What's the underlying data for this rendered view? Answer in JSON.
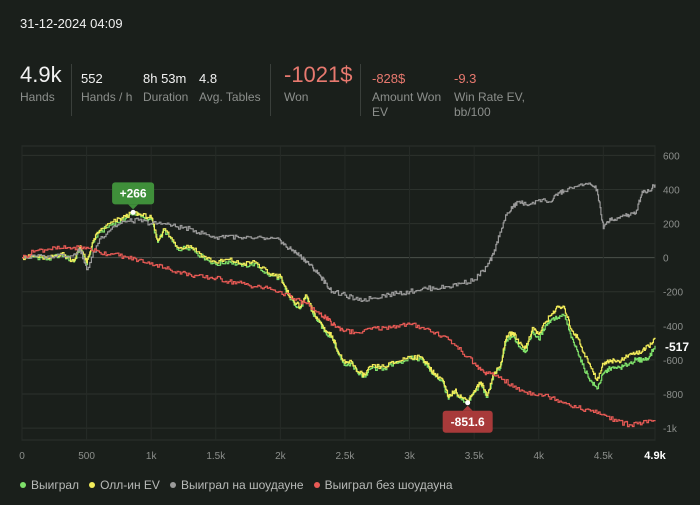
{
  "header": {
    "datetime": "31-12-2024 04:09"
  },
  "stats": {
    "hands": {
      "value": "4.9k",
      "label": "Hands"
    },
    "hands_per_hour": {
      "value": "552",
      "label": "Hands / h"
    },
    "duration": {
      "value": "8h 53m",
      "label": "Duration"
    },
    "avg_tables": {
      "value": "4.8",
      "label": "Avg. Tables"
    },
    "won": {
      "value": "-1021$",
      "label": "Won"
    },
    "amount_won_ev": {
      "value": "-828$",
      "label": "Amount Won EV"
    },
    "win_rate_ev": {
      "value": "-9.3",
      "label": "Win Rate EV, bb/100"
    }
  },
  "colors": {
    "background": "#1a1f1b",
    "won": "#7ee06a",
    "allin_ev": "#f2ec5a",
    "showdown": "#9a9a9a",
    "non_showdown": "#e85a55",
    "badge_positive": "#3f8f3a",
    "badge_negative": "#a83a3a",
    "negative_text": "#e8796f"
  },
  "chart_data": {
    "type": "line",
    "xlim": [
      0,
      4900
    ],
    "ylim": [
      -1070,
      620
    ],
    "x_ticks": [
      "0",
      "500",
      "1k",
      "1.5k",
      "2k",
      "2.5k",
      "3k",
      "3.5k",
      "4k",
      "4.5k",
      "4.9k"
    ],
    "x_tick_values": [
      0,
      500,
      1000,
      1500,
      2000,
      2500,
      3000,
      3500,
      4000,
      4500,
      4900
    ],
    "y_ticks": [
      "600",
      "400",
      "200",
      "0",
      "-200",
      "-400",
      "-600",
      "-800",
      "-1k"
    ],
    "y_tick_values": [
      600,
      400,
      200,
      0,
      -200,
      -400,
      -600,
      -800,
      -1000
    ],
    "grid": true,
    "legend_position": "bottom-left",
    "series": [
      {
        "name": "Выиграл",
        "color": "#7ee06a",
        "points": [
          [
            0,
            0
          ],
          [
            100,
            5
          ],
          [
            200,
            -10
          ],
          [
            300,
            20
          ],
          [
            400,
            -25
          ],
          [
            450,
            60
          ],
          [
            500,
            -40
          ],
          [
            550,
            90
          ],
          [
            600,
            150
          ],
          [
            700,
            200
          ],
          [
            800,
            230
          ],
          [
            860,
            266
          ],
          [
            920,
            240
          ],
          [
            1000,
            225
          ],
          [
            1050,
            90
          ],
          [
            1100,
            160
          ],
          [
            1200,
            50
          ],
          [
            1300,
            60
          ],
          [
            1400,
            0
          ],
          [
            1500,
            -40
          ],
          [
            1600,
            -20
          ],
          [
            1700,
            -50
          ],
          [
            1800,
            -35
          ],
          [
            1900,
            -100
          ],
          [
            2000,
            -120
          ],
          [
            2050,
            -210
          ],
          [
            2100,
            -260
          ],
          [
            2150,
            -300
          ],
          [
            2200,
            -230
          ],
          [
            2250,
            -330
          ],
          [
            2300,
            -380
          ],
          [
            2350,
            -440
          ],
          [
            2400,
            -470
          ],
          [
            2450,
            -570
          ],
          [
            2500,
            -630
          ],
          [
            2550,
            -620
          ],
          [
            2600,
            -680
          ],
          [
            2650,
            -700
          ],
          [
            2700,
            -650
          ],
          [
            2800,
            -650
          ],
          [
            2900,
            -620
          ],
          [
            3000,
            -590
          ],
          [
            3100,
            -600
          ],
          [
            3150,
            -650
          ],
          [
            3200,
            -700
          ],
          [
            3250,
            -720
          ],
          [
            3300,
            -830
          ],
          [
            3350,
            -790
          ],
          [
            3400,
            -830
          ],
          [
            3450,
            -851.6
          ],
          [
            3500,
            -790
          ],
          [
            3550,
            -740
          ],
          [
            3600,
            -820
          ],
          [
            3650,
            -690
          ],
          [
            3700,
            -650
          ],
          [
            3750,
            -480
          ],
          [
            3800,
            -460
          ],
          [
            3850,
            -520
          ],
          [
            3900,
            -550
          ],
          [
            3950,
            -430
          ],
          [
            4000,
            -480
          ],
          [
            4050,
            -400
          ],
          [
            4100,
            -360
          ],
          [
            4150,
            -350
          ],
          [
            4200,
            -340
          ],
          [
            4250,
            -470
          ],
          [
            4300,
            -550
          ],
          [
            4350,
            -650
          ],
          [
            4400,
            -720
          ],
          [
            4450,
            -770
          ],
          [
            4500,
            -680
          ],
          [
            4550,
            -650
          ],
          [
            4600,
            -650
          ],
          [
            4650,
            -640
          ],
          [
            4700,
            -620
          ],
          [
            4750,
            -600
          ],
          [
            4800,
            -600
          ],
          [
            4850,
            -590
          ],
          [
            4900,
            -517
          ]
        ]
      },
      {
        "name": "Олл-ин EV",
        "color": "#f2ec5a",
        "points": [
          [
            0,
            0
          ],
          [
            100,
            8
          ],
          [
            200,
            -5
          ],
          [
            300,
            25
          ],
          [
            400,
            -20
          ],
          [
            450,
            70
          ],
          [
            500,
            -30
          ],
          [
            550,
            100
          ],
          [
            600,
            160
          ],
          [
            700,
            210
          ],
          [
            800,
            240
          ],
          [
            860,
            266
          ],
          [
            920,
            250
          ],
          [
            1000,
            235
          ],
          [
            1050,
            100
          ],
          [
            1100,
            170
          ],
          [
            1200,
            60
          ],
          [
            1300,
            70
          ],
          [
            1400,
            10
          ],
          [
            1500,
            -30
          ],
          [
            1600,
            -10
          ],
          [
            1700,
            -40
          ],
          [
            1800,
            -25
          ],
          [
            1900,
            -90
          ],
          [
            2000,
            -110
          ],
          [
            2050,
            -200
          ],
          [
            2100,
            -250
          ],
          [
            2150,
            -290
          ],
          [
            2200,
            -220
          ],
          [
            2250,
            -320
          ],
          [
            2300,
            -370
          ],
          [
            2350,
            -430
          ],
          [
            2400,
            -460
          ],
          [
            2450,
            -560
          ],
          [
            2500,
            -620
          ],
          [
            2550,
            -610
          ],
          [
            2600,
            -670
          ],
          [
            2650,
            -690
          ],
          [
            2700,
            -640
          ],
          [
            2800,
            -640
          ],
          [
            2900,
            -610
          ],
          [
            3000,
            -580
          ],
          [
            3100,
            -590
          ],
          [
            3150,
            -640
          ],
          [
            3200,
            -690
          ],
          [
            3250,
            -710
          ],
          [
            3300,
            -820
          ],
          [
            3350,
            -780
          ],
          [
            3400,
            -820
          ],
          [
            3450,
            -840
          ],
          [
            3500,
            -780
          ],
          [
            3550,
            -730
          ],
          [
            3600,
            -810
          ],
          [
            3650,
            -680
          ],
          [
            3700,
            -640
          ],
          [
            3750,
            -460
          ],
          [
            3800,
            -440
          ],
          [
            3850,
            -500
          ],
          [
            3900,
            -530
          ],
          [
            3950,
            -410
          ],
          [
            4000,
            -450
          ],
          [
            4050,
            -380
          ],
          [
            4100,
            -330
          ],
          [
            4150,
            -290
          ],
          [
            4200,
            -300
          ],
          [
            4250,
            -420
          ],
          [
            4300,
            -470
          ],
          [
            4350,
            -560
          ],
          [
            4400,
            -640
          ],
          [
            4450,
            -720
          ],
          [
            4500,
            -620
          ],
          [
            4550,
            -600
          ],
          [
            4600,
            -610
          ],
          [
            4650,
            -600
          ],
          [
            4700,
            -570
          ],
          [
            4750,
            -560
          ],
          [
            4800,
            -550
          ],
          [
            4850,
            -520
          ],
          [
            4900,
            -470
          ]
        ]
      },
      {
        "name": "Выиграл на шоудауне",
        "color": "#9a9a9a",
        "points": [
          [
            0,
            0
          ],
          [
            200,
            10
          ],
          [
            400,
            20
          ],
          [
            450,
            50
          ],
          [
            500,
            -70
          ],
          [
            600,
            110
          ],
          [
            700,
            180
          ],
          [
            800,
            210
          ],
          [
            900,
            220
          ],
          [
            1000,
            200
          ],
          [
            1100,
            200
          ],
          [
            1200,
            180
          ],
          [
            1300,
            170
          ],
          [
            1400,
            140
          ],
          [
            1500,
            120
          ],
          [
            1600,
            130
          ],
          [
            1700,
            110
          ],
          [
            1800,
            115
          ],
          [
            1900,
            110
          ],
          [
            2000,
            100
          ],
          [
            2050,
            60
          ],
          [
            2100,
            40
          ],
          [
            2150,
            10
          ],
          [
            2200,
            -20
          ],
          [
            2250,
            -60
          ],
          [
            2300,
            -100
          ],
          [
            2350,
            -150
          ],
          [
            2400,
            -200
          ],
          [
            2500,
            -220
          ],
          [
            2600,
            -250
          ],
          [
            2700,
            -240
          ],
          [
            2800,
            -220
          ],
          [
            2900,
            -210
          ],
          [
            3000,
            -200
          ],
          [
            3100,
            -180
          ],
          [
            3200,
            -180
          ],
          [
            3300,
            -170
          ],
          [
            3400,
            -150
          ],
          [
            3500,
            -130
          ],
          [
            3600,
            -50
          ],
          [
            3650,
            20
          ],
          [
            3700,
            150
          ],
          [
            3750,
            250
          ],
          [
            3800,
            300
          ],
          [
            3850,
            330
          ],
          [
            3900,
            310
          ],
          [
            4000,
            340
          ],
          [
            4100,
            330
          ],
          [
            4150,
            380
          ],
          [
            4200,
            390
          ],
          [
            4300,
            420
          ],
          [
            4400,
            430
          ],
          [
            4450,
            400
          ],
          [
            4500,
            170
          ],
          [
            4550,
            230
          ],
          [
            4600,
            220
          ],
          [
            4650,
            250
          ],
          [
            4700,
            250
          ],
          [
            4750,
            260
          ],
          [
            4800,
            390
          ],
          [
            4850,
            390
          ],
          [
            4900,
            430
          ]
        ]
      },
      {
        "name": "Выиграл без шоудауна",
        "color": "#e85a55",
        "points": [
          [
            0,
            0
          ],
          [
            100,
            40
          ],
          [
            200,
            50
          ],
          [
            300,
            55
          ],
          [
            400,
            60
          ],
          [
            500,
            60
          ],
          [
            600,
            30
          ],
          [
            700,
            20
          ],
          [
            800,
            5
          ],
          [
            900,
            -15
          ],
          [
            1000,
            -30
          ],
          [
            1100,
            -60
          ],
          [
            1200,
            -80
          ],
          [
            1300,
            -100
          ],
          [
            1400,
            -115
          ],
          [
            1500,
            -120
          ],
          [
            1600,
            -140
          ],
          [
            1700,
            -150
          ],
          [
            1800,
            -170
          ],
          [
            1900,
            -180
          ],
          [
            2000,
            -200
          ],
          [
            2100,
            -240
          ],
          [
            2200,
            -270
          ],
          [
            2300,
            -330
          ],
          [
            2350,
            -350
          ],
          [
            2400,
            -390
          ],
          [
            2450,
            -410
          ],
          [
            2500,
            -430
          ],
          [
            2600,
            -440
          ],
          [
            2700,
            -420
          ],
          [
            2800,
            -410
          ],
          [
            2900,
            -400
          ],
          [
            3000,
            -390
          ],
          [
            3100,
            -410
          ],
          [
            3200,
            -440
          ],
          [
            3300,
            -480
          ],
          [
            3400,
            -550
          ],
          [
            3500,
            -620
          ],
          [
            3550,
            -660
          ],
          [
            3600,
            -680
          ],
          [
            3700,
            -700
          ],
          [
            3800,
            -760
          ],
          [
            3900,
            -790
          ],
          [
            4000,
            -800
          ],
          [
            4100,
            -820
          ],
          [
            4200,
            -850
          ],
          [
            4300,
            -880
          ],
          [
            4400,
            -900
          ],
          [
            4500,
            -920
          ],
          [
            4600,
            -960
          ],
          [
            4700,
            -980
          ],
          [
            4800,
            -970
          ],
          [
            4900,
            -960
          ]
        ]
      }
    ],
    "annotations": [
      {
        "text": "+266",
        "x": 860,
        "y": 266,
        "kind": "max"
      },
      {
        "text": "-851.6",
        "x": 3450,
        "y": -851.6,
        "kind": "min"
      },
      {
        "text": "-517",
        "x": 4900,
        "y": -517,
        "kind": "end"
      }
    ]
  },
  "legend": [
    {
      "label": "Выиграл",
      "color": "#7ee06a"
    },
    {
      "label": "Олл-ин EV",
      "color": "#f2ec5a"
    },
    {
      "label": "Выиграл на шоудауне",
      "color": "#9a9a9a"
    },
    {
      "label": "Выиграл без шоудауна",
      "color": "#e85a55"
    }
  ]
}
